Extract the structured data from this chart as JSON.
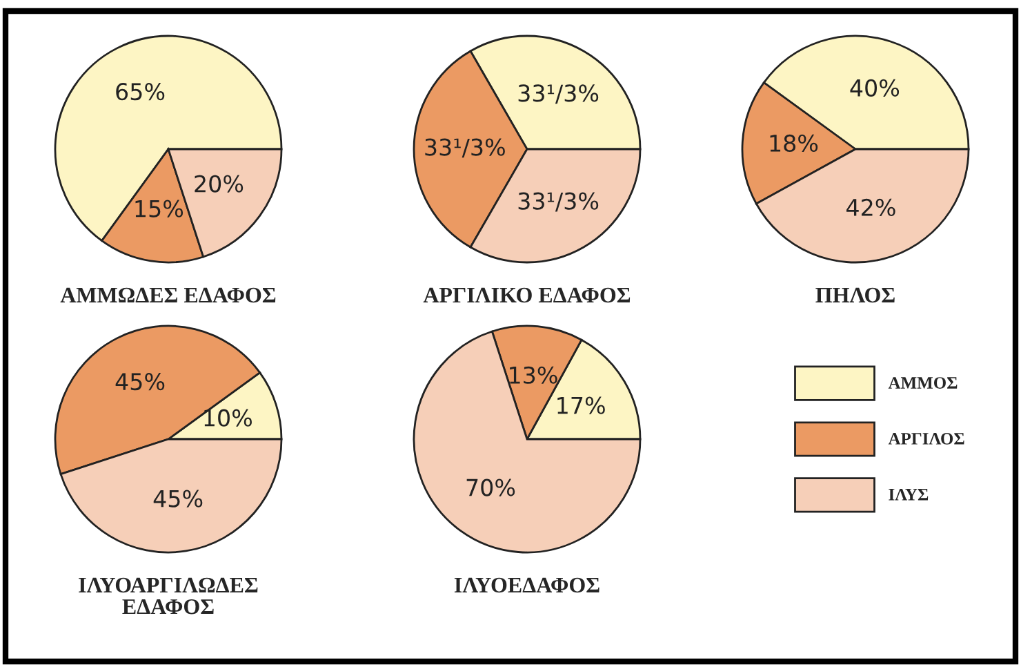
{
  "chart_data": [
    {
      "type": "pie",
      "title": "ΑΜΜΩΔΕΣ ΕΔΑΦΟΣ",
      "categories": [
        "ΑΜΜΟΣ",
        "ΑΡΓΙΛΟΣ",
        "ΙΛΥΣ"
      ],
      "values": [
        65,
        15,
        20
      ],
      "value_labels": [
        "65%",
        "15%",
        "20%"
      ],
      "colors": [
        "#fdf5c4",
        "#eb9a63",
        "#f6cfb8"
      ],
      "legend": "right"
    },
    {
      "type": "pie",
      "title": "ΑΡΓΙΛΙΚΟ ΕΔΑΦΟΣ",
      "categories": [
        null,
        null,
        null
      ],
      "values": [
        33.3,
        33.3,
        33.3
      ],
      "value_labels": [
        "33¹/3%",
        "33¹/3%",
        "33¹/3%"
      ],
      "colors": [
        "#fdf5c4",
        "#eb9a63",
        "#f6cfb8"
      ],
      "legend": false
    },
    {
      "type": "pie",
      "title": "ΠΗΛΟΣ",
      "categories": [
        null,
        null,
        null
      ],
      "values": [
        40,
        18,
        42
      ],
      "value_labels": [
        "40%",
        "18%",
        "42%"
      ],
      "colors": [
        "#fdf5c4",
        "#eb9a63",
        "#f6cfb8"
      ],
      "legend": false
    },
    {
      "type": "pie",
      "title": "ΙΛΥΟΑΡΓΙΛΩΔΕΣ\nΕΔΑΦΟΣ",
      "categories": [
        null,
        null,
        null
      ],
      "values": [
        10,
        45,
        45
      ],
      "value_labels": [
        "10%",
        "45%",
        "45%"
      ],
      "colors": [
        "#fdf5c4",
        "#eb9a63",
        "#f6cfb8"
      ],
      "legend": false
    },
    {
      "type": "pie",
      "title": "ΙΛΥΟΕΔΑΦΟΣ",
      "categories": [
        null,
        null,
        null
      ],
      "values": [
        17,
        13,
        70
      ],
      "value_labels": [
        "17%",
        "13%",
        "70%"
      ],
      "colors": [
        "#fdf5c4",
        "#eb9a63",
        "#f6cfb8"
      ],
      "legend": false
    }
  ]
}
